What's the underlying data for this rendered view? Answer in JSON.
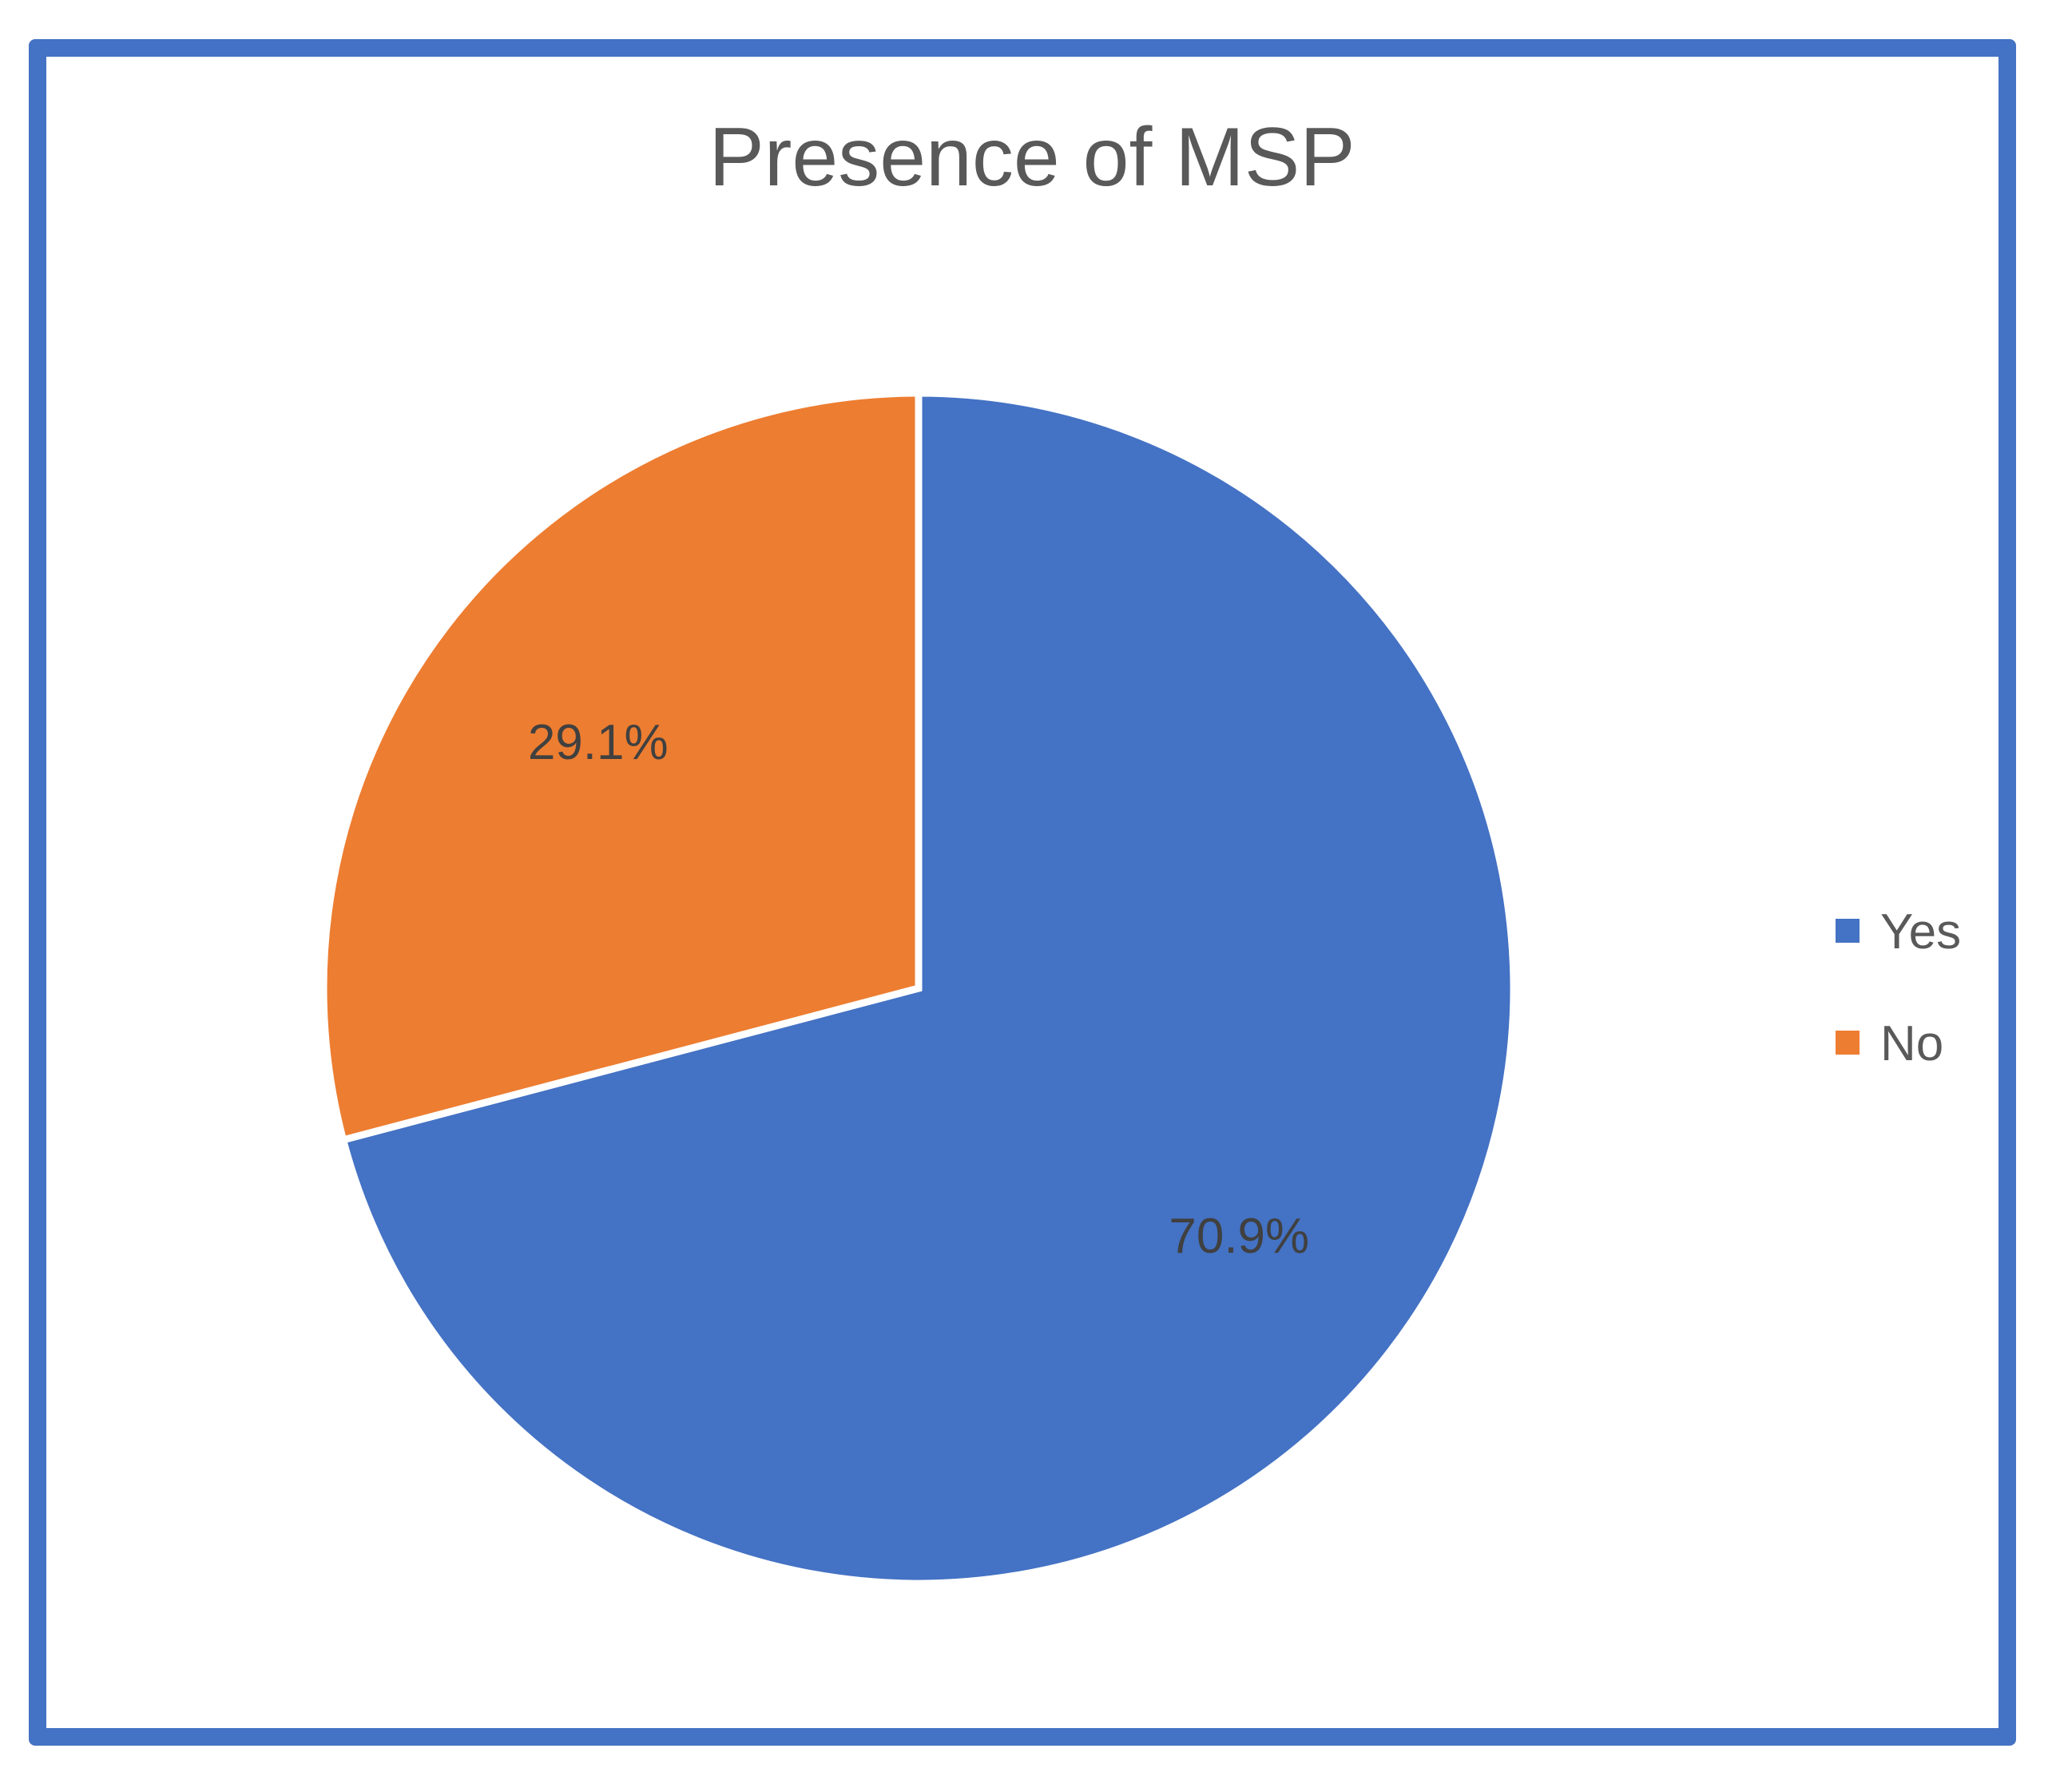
{
  "chart_data": {
    "type": "pie",
    "title": "Presence of MSP",
    "categories": [
      "Yes",
      "No"
    ],
    "values": [
      70.9,
      29.1
    ],
    "labels": [
      "70.9%",
      "29.1%"
    ],
    "colors": [
      "#4472C4",
      "#ED7D31"
    ],
    "legend_position": "right"
  },
  "frame": {
    "border_color": "#4472C4"
  }
}
